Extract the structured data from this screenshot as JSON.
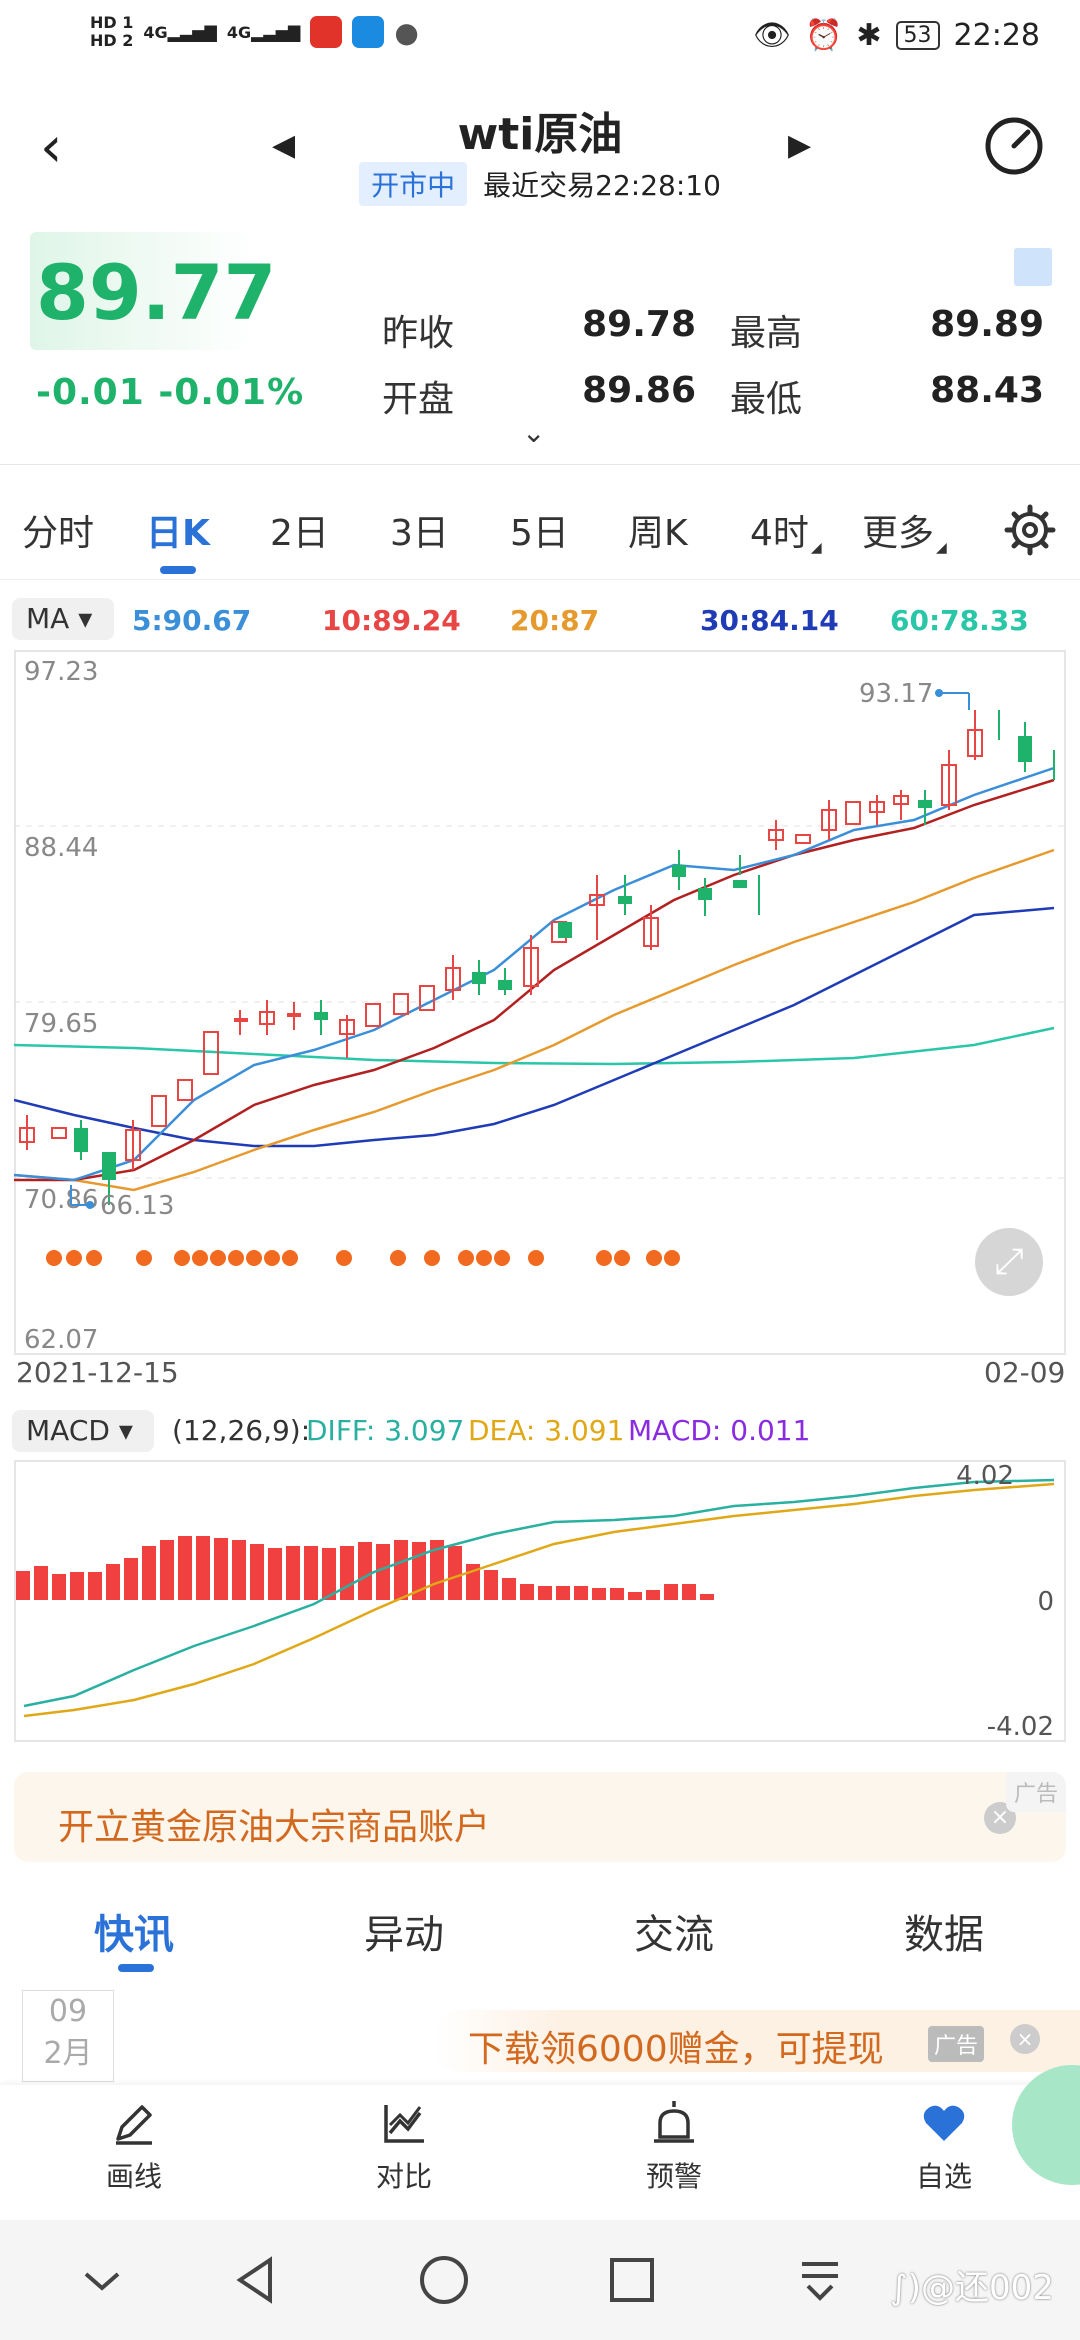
{
  "status": {
    "sim1": "HD 1",
    "sim2": "HD 2",
    "net1": "4G",
    "net2": "4G",
    "battery": "53",
    "time": "22:28"
  },
  "header": {
    "title": "wti原油",
    "badge": "开市中",
    "last_trade": "最近交易22:28:10"
  },
  "quote": {
    "price": "89.77",
    "change": "-0.01",
    "change_pct": "-0.01%",
    "prev_close_label": "昨收",
    "prev_close": "89.78",
    "open_label": "开盘",
    "open": "89.86",
    "high_label": "最高",
    "high": "89.89",
    "low_label": "最低",
    "low": "88.43"
  },
  "period_tabs": [
    "分时",
    "日K",
    "2日",
    "3日",
    "5日",
    "周K",
    "4时",
    "更多"
  ],
  "ma": {
    "selector": "MA",
    "ma5": "5:90.67",
    "ma10": "10:89.24",
    "ma20": "20:87",
    "ma30": "30:84.14",
    "ma60": "60:78.33",
    "colors": {
      "ma5": "#3a8fd8",
      "ma10": "#e84545",
      "ma20": "#e69a2e",
      "ma30": "#1f3bb5",
      "ma60": "#2ac6a8"
    }
  },
  "kchart": {
    "y_labels": [
      "97.23",
      "88.44",
      "79.65",
      "70.86",
      "62.07"
    ],
    "high_marker": "93.17",
    "low_marker": "66.13",
    "start_date": "2021-12-15",
    "end_date": "02-09",
    "up_color": "#e84545",
    "down_color": "#1fb26b"
  },
  "macd": {
    "selector": "MACD",
    "params": "(12,26,9):",
    "diff": "DIFF: 3.097",
    "dea": "DEA: 3.091",
    "macd_val": "MACD: 0.011",
    "y_top": "4.02",
    "y_mid": "0",
    "y_bottom": "-4.02"
  },
  "ad1": {
    "text": "开立黄金原油大宗商品账户",
    "tag": "广告",
    "close": "×"
  },
  "news_tabs": [
    "快讯",
    "异动",
    "交流",
    "数据"
  ],
  "news_date": {
    "day": "09",
    "month": "2月"
  },
  "ad2": {
    "text": "下载领6000赠金，可提现",
    "tag": "广告",
    "close": "×"
  },
  "tools": [
    "画线",
    "对比",
    "预警",
    "自选"
  ],
  "watermark": "∫)@还002"
}
